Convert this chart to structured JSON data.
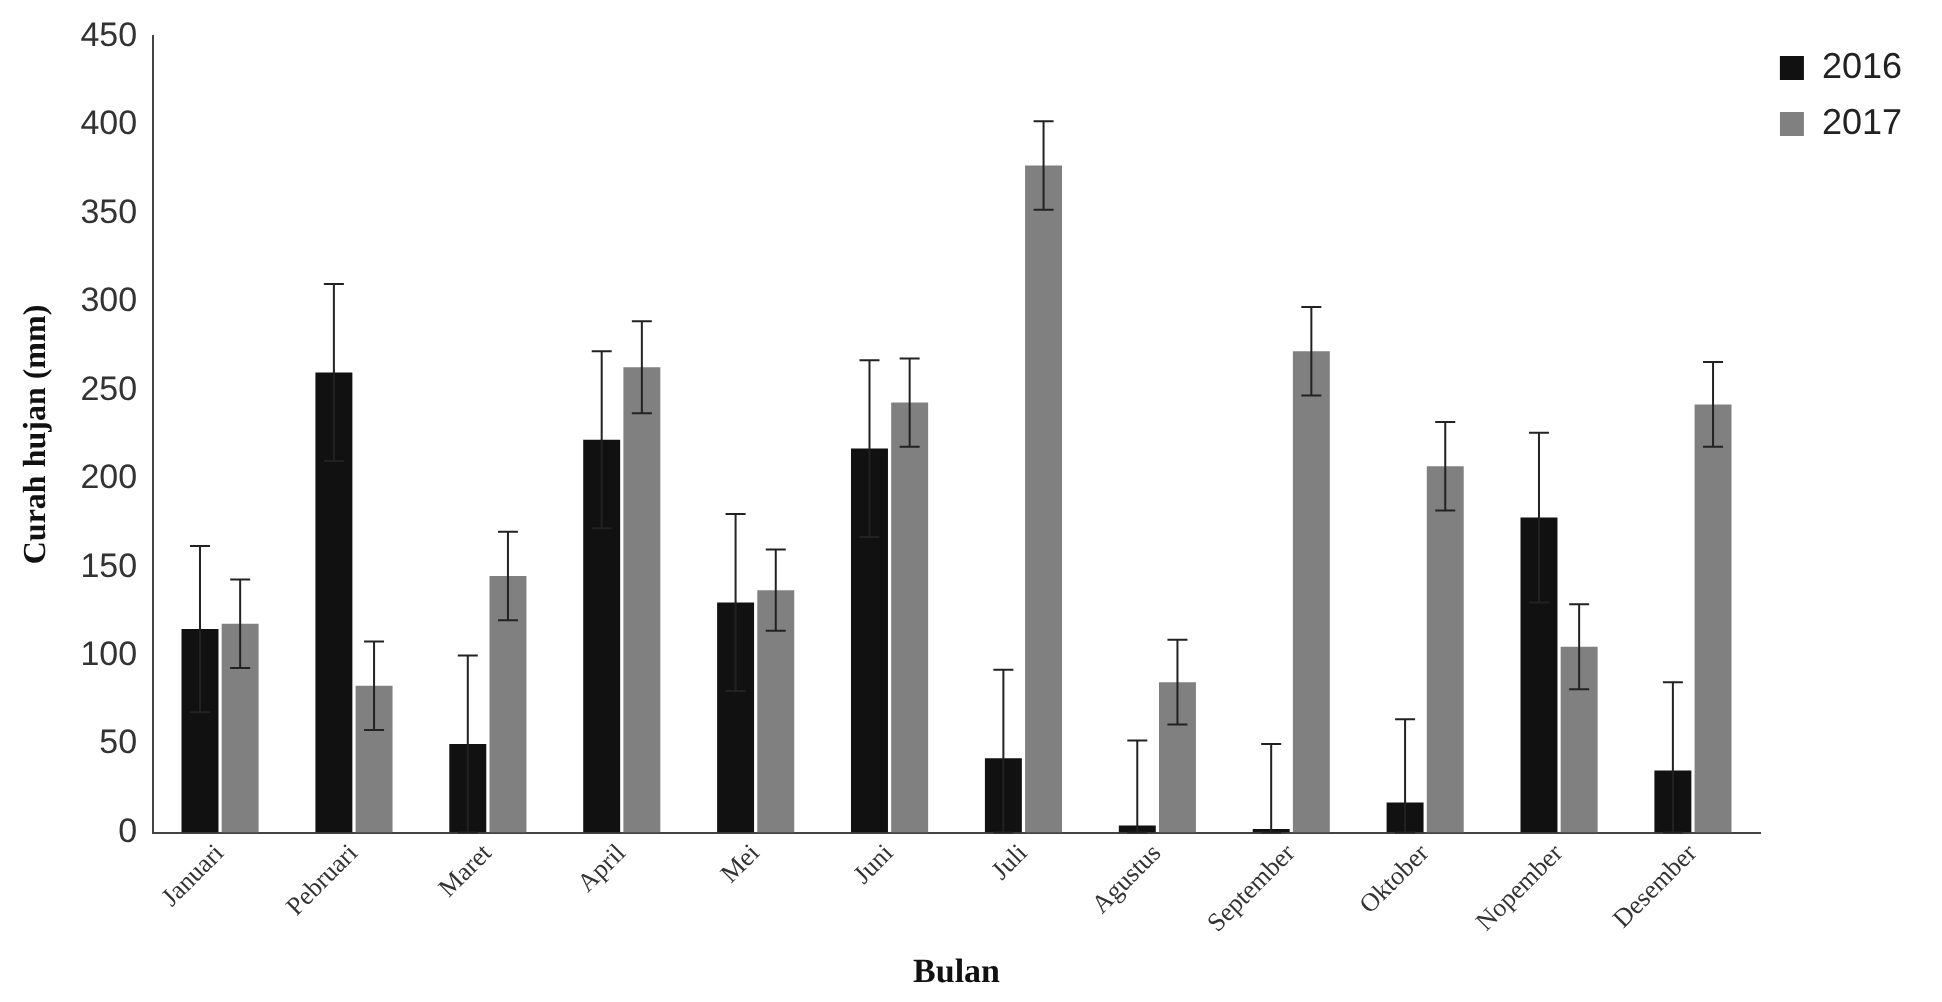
{
  "chart_data": {
    "type": "bar",
    "xlabel": "Bulan",
    "ylabel": "Curah hujan (mm)",
    "categories": [
      "Januari",
      "Pebruari",
      "Maret",
      "April",
      "Mei",
      "Juni",
      "Juli",
      "Agustus",
      "September",
      "Oktober",
      "Nopember",
      "Desember"
    ],
    "series": [
      {
        "name": "2016",
        "color": "#111111",
        "values": [
          115,
          260,
          50,
          222,
          130,
          217,
          42,
          4,
          2,
          17,
          178,
          35
        ],
        "errors": [
          47,
          50,
          50,
          50,
          50,
          50,
          [
            0,
            92
          ],
          [
            0,
            52
          ],
          [
            0,
            50
          ],
          [
            0,
            64
          ],
          48,
          [
            0,
            85
          ]
        ]
      },
      {
        "name": "2017",
        "color": "#808080",
        "values": [
          118,
          83,
          145,
          263,
          137,
          243,
          377,
          85,
          272,
          207,
          105,
          242
        ],
        "errors": [
          25,
          25,
          25,
          26,
          23,
          25,
          25,
          24,
          25,
          25,
          24,
          24
        ]
      }
    ],
    "ylim": [
      0,
      450
    ],
    "yticks": [
      0,
      50,
      100,
      150,
      200,
      250,
      300,
      350,
      400,
      450
    ],
    "grid": false,
    "legend": "top right"
  }
}
